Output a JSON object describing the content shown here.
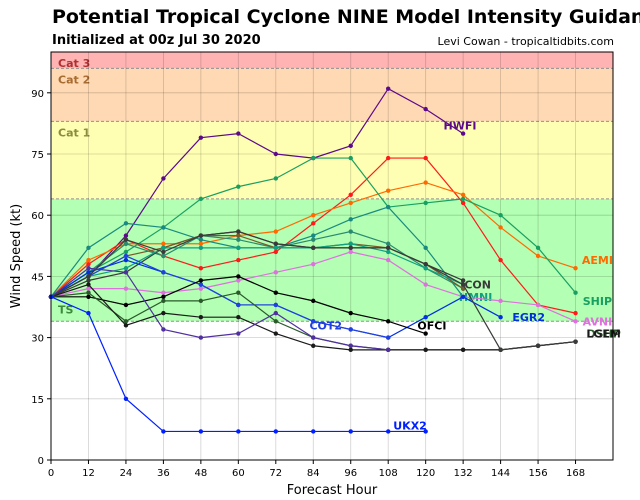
{
  "header": {
    "title": "Potential Tropical Cyclone NINE Model Intensity Guidance",
    "subtitle": "Initialized at 00z Jul 30 2020",
    "credit": "Levi Cowan - tropicaltidbits.com"
  },
  "chart_data": {
    "type": "line",
    "xlabel": "Forecast Hour",
    "ylabel": "Wind Speed (kt)",
    "xlim": [
      0,
      180
    ],
    "ylim": [
      0,
      100
    ],
    "xticks": [
      0,
      12,
      24,
      36,
      48,
      60,
      72,
      84,
      96,
      108,
      120,
      132,
      144,
      156,
      168
    ],
    "yticks": [
      0,
      15,
      30,
      45,
      60,
      75,
      90
    ],
    "grid": true,
    "bands": [
      {
        "label": "TS",
        "from": 34,
        "to": 64,
        "color": "#b3ffb3",
        "label_color": "#3c8a3c"
      },
      {
        "label": "Cat 1",
        "from": 64,
        "to": 83,
        "color": "#ffffb3",
        "label_color": "#8c8c3c"
      },
      {
        "label": "Cat 2",
        "from": 83,
        "to": 96,
        "color": "#ffd9b3",
        "label_color": "#a86c30"
      },
      {
        "label": "Cat 3",
        "from": 96,
        "to": 100,
        "color": "#ffb3b3",
        "label_color": "#b03030"
      }
    ],
    "series": [
      {
        "name": "HWFI",
        "color": "#5c0a8a",
        "label_at": [
          131,
          82
        ],
        "x": [
          0,
          12,
          24,
          36,
          48,
          60,
          72,
          84,
          96,
          108,
          120,
          132
        ],
        "y": [
          40,
          45,
          55,
          69,
          79,
          80,
          75,
          74,
          77,
          91,
          86,
          80
        ]
      },
      {
        "name": "",
        "color": "#ff1a1a",
        "x": [
          0,
          12,
          24,
          36,
          48,
          60,
          72,
          84,
          96,
          108,
          120,
          132,
          144,
          156,
          168
        ],
        "y": [
          40,
          48,
          54,
          50,
          47,
          49,
          51,
          58,
          65,
          74,
          74,
          63,
          49,
          38,
          36
        ]
      },
      {
        "name": "AEMI",
        "color": "#ff6a00",
        "label_at": [
          175,
          49
        ],
        "x": [
          0,
          12,
          24,
          36,
          48,
          60,
          72,
          84,
          96,
          108,
          120,
          132,
          144,
          156,
          168
        ],
        "y": [
          40,
          49,
          53,
          53,
          53,
          55,
          56,
          60,
          63,
          66,
          68,
          65,
          57,
          50,
          47
        ]
      },
      {
        "name": "SHIP",
        "color": "#18a060",
        "label_at": [
          175,
          39
        ],
        "x": [
          0,
          12,
          24,
          36,
          48,
          60,
          72,
          84,
          96,
          108,
          120,
          132,
          144,
          156,
          168
        ],
        "y": [
          40,
          46,
          51,
          57,
          64,
          67,
          69,
          74,
          74,
          62,
          63,
          64,
          60,
          52,
          41
        ]
      },
      {
        "name": "",
        "color": "#1a8a80",
        "x": [
          0,
          12,
          24,
          36,
          48,
          60,
          72,
          84,
          96,
          108,
          120,
          132
        ],
        "y": [
          40,
          52,
          58,
          57,
          54,
          52,
          52,
          55,
          59,
          62,
          52,
          40
        ]
      },
      {
        "name": "",
        "color": "#2a8a70",
        "x": [
          0,
          12,
          24,
          36,
          48,
          60,
          72,
          84,
          96,
          108,
          120,
          132
        ],
        "y": [
          40,
          46,
          53,
          50,
          55,
          54,
          52,
          54,
          56,
          53,
          47,
          42
        ]
      },
      {
        "name": "ICON",
        "color": "#3a3a3a",
        "label_at": [
          136,
          43
        ],
        "x": [
          0,
          12,
          24,
          36,
          48,
          60,
          72,
          84,
          96,
          108,
          120,
          132
        ],
        "y": [
          40,
          44,
          46,
          52,
          55,
          56,
          53,
          52,
          52,
          52,
          48,
          44
        ]
      },
      {
        "name": "",
        "color": "#7a5a2a",
        "x": [
          0,
          12,
          24,
          36,
          48,
          60,
          72,
          84,
          96,
          108,
          120,
          132
        ],
        "y": [
          40,
          45,
          50,
          52,
          55,
          55,
          52,
          52,
          53,
          52,
          48,
          42
        ]
      },
      {
        "name": "HMNI",
        "color": "#0fa080",
        "label_at": [
          136,
          40
        ],
        "x": [
          0,
          12,
          24,
          36,
          48,
          60,
          72,
          84,
          96,
          108,
          120,
          132
        ],
        "y": [
          40,
          45,
          47,
          52,
          52,
          52,
          52,
          52,
          53,
          51,
          47,
          43
        ]
      },
      {
        "name": "AVNI",
        "color": "#e070e0",
        "label_at": [
          175,
          34
        ],
        "x": [
          0,
          12,
          24,
          36,
          48,
          60,
          72,
          84,
          96,
          108,
          120,
          132,
          144,
          156,
          168
        ],
        "y": [
          40,
          42,
          42,
          41,
          42,
          44,
          46,
          48,
          51,
          49,
          43,
          40,
          39,
          38,
          34
        ]
      },
      {
        "name": "EGR2",
        "color": "#0030e0",
        "label_at": [
          153,
          35
        ],
        "x": [
          0,
          12,
          24,
          36,
          48,
          60,
          72,
          84,
          96,
          108,
          120,
          132,
          144
        ],
        "y": [
          40,
          46,
          49,
          46,
          43,
          38,
          38,
          34,
          32,
          30,
          35,
          40,
          35
        ]
      },
      {
        "name": "COT2",
        "color": "#2040e0",
        "label_at": [
          88,
          33
        ],
        "x": [
          0,
          12,
          24,
          36,
          48,
          60,
          72,
          84,
          96,
          108
        ],
        "y": [
          40,
          45,
          50,
          46,
          43,
          38,
          38,
          34,
          32,
          30
        ]
      },
      {
        "name": "OFCI",
        "color": "#000000",
        "label_at": [
          122,
          33
        ],
        "x": [
          0,
          12,
          24,
          36,
          48,
          60,
          72,
          84,
          96,
          108,
          120
        ],
        "y": [
          40,
          40,
          38,
          40,
          44,
          45,
          41,
          39,
          36,
          34,
          31
        ]
      },
      {
        "name": "DSHP",
        "color": "#2a5a2a",
        "label_at": [
          177,
          31
        ],
        "x": [
          0,
          12,
          24,
          36,
          48,
          60,
          72,
          84,
          96,
          108,
          120,
          132,
          144,
          156,
          168
        ],
        "y": [
          40,
          41,
          34,
          39,
          39,
          41,
          34,
          30,
          28,
          27,
          27,
          27,
          27,
          28,
          29
        ]
      },
      {
        "name": "LGEM",
        "color": "#1a1a1a",
        "label_at": [
          177,
          31
        ],
        "x": [
          0,
          12,
          24,
          36,
          48,
          60,
          72,
          84,
          96,
          108,
          120,
          132,
          144,
          156,
          168
        ],
        "y": [
          40,
          43,
          33,
          36,
          35,
          35,
          31,
          28,
          27,
          27,
          27,
          27,
          27,
          28,
          29
        ]
      },
      {
        "name": "",
        "color": "#3a3a3a",
        "x": [
          0,
          12,
          24,
          36,
          48,
          60,
          72,
          84,
          96,
          108,
          120,
          132,
          144,
          156,
          168
        ],
        "y": [
          40,
          45,
          54,
          51,
          55,
          56,
          53,
          52,
          52,
          52,
          48,
          43,
          27,
          28,
          29
        ]
      },
      {
        "name": "",
        "color": "#5030a0",
        "x": [
          0,
          12,
          24,
          36,
          48,
          60,
          72,
          84,
          96,
          108
        ],
        "y": [
          40,
          47,
          46,
          32,
          30,
          31,
          36,
          30,
          28,
          27
        ]
      },
      {
        "name": "UKX2",
        "color": "#0020ff",
        "label_at": [
          115,
          8.5
        ],
        "x": [
          0,
          12,
          24,
          36,
          48,
          60,
          72,
          84,
          96,
          108,
          120
        ],
        "y": [
          40,
          36,
          15,
          7,
          7,
          7,
          7,
          7,
          7,
          7,
          7
        ]
      }
    ]
  }
}
